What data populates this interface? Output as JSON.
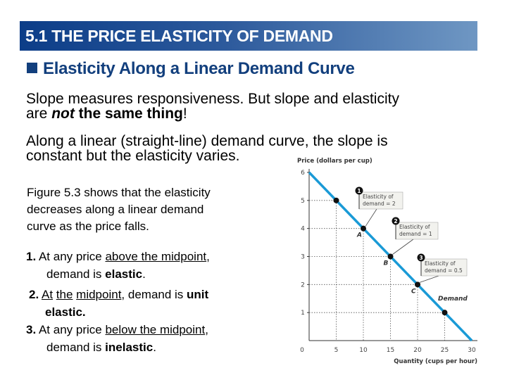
{
  "slide": {
    "title": "5.1  THE PRICE ELASTICITY OF DEMAND",
    "subheading": "Elasticity Along a Linear Demand Curve",
    "para1": {
      "a": "Slope measures responsiveness. But slope and elasticity",
      "b": "are ",
      "c": "not",
      "d": " the same thing",
      "e": "!"
    },
    "para2": {
      "a": "Along a linear (straight-line) demand curve, the slope is",
      "b": "constant but the elasticity varies."
    },
    "fig": {
      "a": "Figure 5.3 shows that the elasticity",
      "b": "decreases along a linear demand",
      "c": "curve as the price falls."
    },
    "item1": {
      "num": "1.",
      "a": " At any price ",
      "u": "above the midpoint",
      "b": ",",
      "c": "demand is ",
      "bold": "elastic",
      "d": "."
    },
    "item2": {
      "num": "2.",
      "a": " ",
      "u1": "At",
      "sp": " ",
      "u2": "the",
      "sp2": " ",
      "u3": "midpoint",
      "b": ", demand is ",
      "bold1": "unit",
      "bold2": "elastic."
    },
    "item3": {
      "num": "3.",
      "a": " At any price ",
      "u": "below the midpoint",
      "b": ",",
      "c": "demand is ",
      "bold": "inelastic",
      "d": "."
    }
  },
  "chart_data": {
    "type": "line",
    "title": "",
    "ylabel": "Price (dollars per cup)",
    "xlabel": "Quantity (cups per hour)",
    "xlim": [
      0,
      30
    ],
    "ylim": [
      0,
      6
    ],
    "xticks": [
      "0",
      "5",
      "10",
      "15",
      "20",
      "25",
      "30"
    ],
    "yticks": [
      "1",
      "2",
      "3",
      "4",
      "5",
      "6"
    ],
    "grid": false,
    "series": [
      {
        "name": "Demand",
        "color": "#1a9ad6",
        "x": [
          0,
          30
        ],
        "y": [
          6,
          0
        ]
      }
    ],
    "points": [
      {
        "x": 5,
        "y": 5,
        "label": ""
      },
      {
        "x": 10,
        "y": 4,
        "label": "A"
      },
      {
        "x": 15,
        "y": 3,
        "label": "B"
      },
      {
        "x": 20,
        "y": 2,
        "label": "C"
      },
      {
        "x": 25,
        "y": 1,
        "label": ""
      }
    ],
    "annotations": [
      {
        "num": "1",
        "line1": "Elasticity of",
        "line2": "demand = 2",
        "point": "A"
      },
      {
        "num": "2",
        "line1": "Elasticity of",
        "line2": "demand = 1",
        "point": "B"
      },
      {
        "num": "3",
        "line1": "Elasticity of",
        "line2": "demand = 0.5",
        "point": "C"
      }
    ]
  }
}
